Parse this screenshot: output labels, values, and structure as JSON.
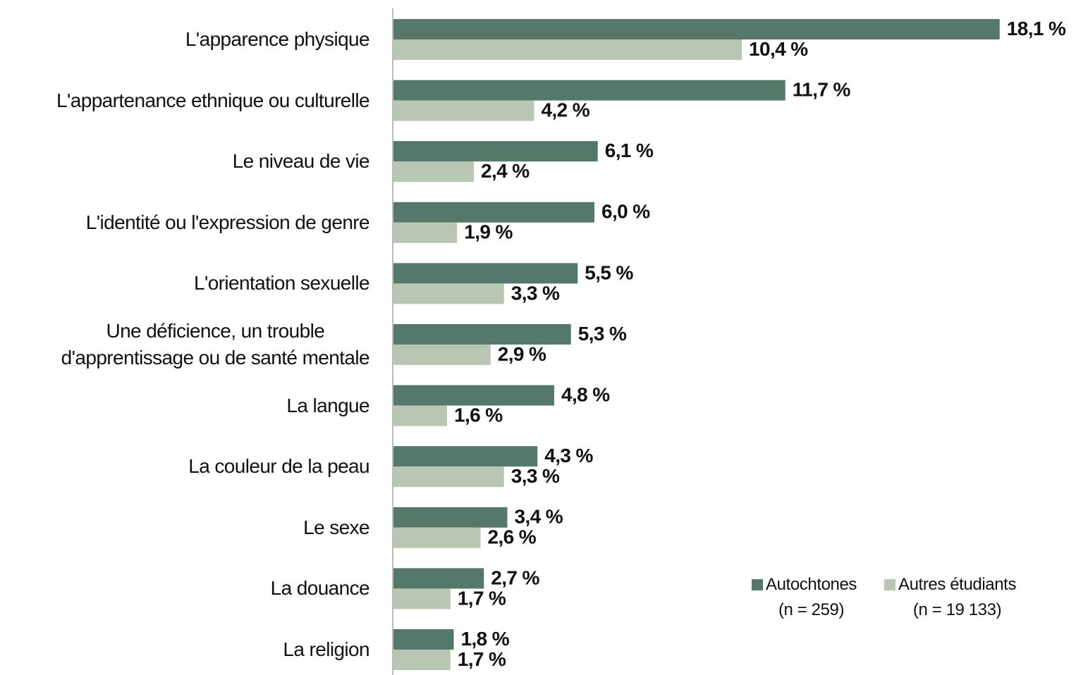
{
  "chart_data": {
    "type": "hbar",
    "categories": [
      "L'apparence physique",
      "L'appartenance ethnique ou culturelle",
      "Le niveau de vie",
      "L'identité ou l'expression de genre",
      "L'orientation sexuelle",
      "Une déficience, un trouble\nd'apprentissage ou de santé mentale",
      "La langue",
      "La couleur de la peau",
      "Le sexe",
      "La douance",
      "La religion"
    ],
    "series": [
      {
        "name": "Autochtones\n(n = 259)",
        "color": "#56786a",
        "values": [
          18.1,
          11.7,
          6.1,
          6.0,
          5.5,
          5.3,
          4.8,
          4.3,
          3.4,
          2.7,
          1.8
        ],
        "value_labels": [
          "18,1 %",
          "11,7 %",
          "6,1 %",
          "6,0 %",
          "5,5 %",
          "5,3 %",
          "4,8 %",
          "4,3 %",
          "3,4 %",
          "2,7 %",
          "1,8 %"
        ]
      },
      {
        "name": "Autres étudiants\n(n = 19 133)",
        "color": "#b9c6b4",
        "values": [
          10.4,
          4.2,
          2.4,
          1.9,
          3.3,
          2.9,
          1.6,
          3.3,
          2.6,
          1.7,
          1.7
        ],
        "value_labels": [
          "10,4 %",
          "4,2 %",
          "2,4 %",
          "1,9 %",
          "3,3 %",
          "2,9 %",
          "1,6 %",
          "3,3 %",
          "2,6 %",
          "1,7 %",
          "1,7 %"
        ]
      }
    ],
    "xlim": [
      0,
      20
    ],
    "legend": "lower right"
  }
}
